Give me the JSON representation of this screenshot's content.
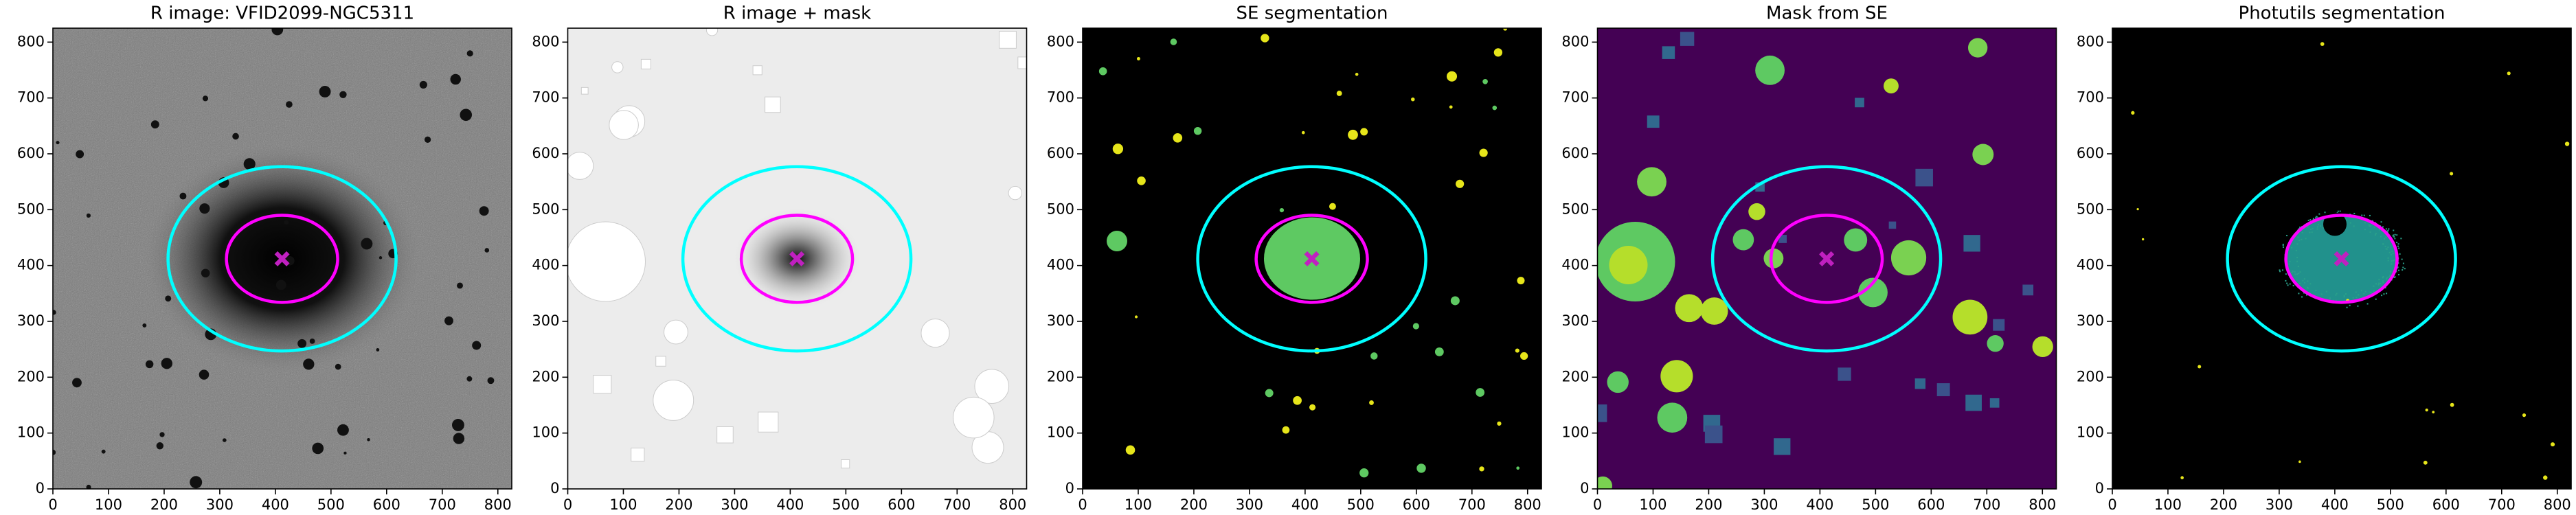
{
  "chart_data": [
    {
      "type": "image",
      "title": "R image: VFID2099-NGC5311",
      "background": "#7a7a7a",
      "xlim": [
        0,
        825
      ],
      "ylim": [
        0,
        825
      ],
      "xticks": [
        0,
        100,
        200,
        300,
        400,
        500,
        600,
        700,
        800
      ],
      "yticks": [
        0,
        100,
        200,
        300,
        400,
        500,
        600,
        700,
        800
      ],
      "ellipses": [
        {
          "cx": 412,
          "cy": 412,
          "rx": 205,
          "ry": 165,
          "color": "#00ffff"
        },
        {
          "cx": 412,
          "cy": 412,
          "rx": 100,
          "ry": 78,
          "color": "#ff00ff"
        }
      ],
      "marker": {
        "x": 412,
        "y": 412,
        "color": "#c020c0"
      }
    },
    {
      "type": "image",
      "title": "R image + mask",
      "background": "#ececec",
      "xlim": [
        0,
        825
      ],
      "ylim": [
        0,
        825
      ],
      "xticks": [
        0,
        100,
        200,
        300,
        400,
        500,
        600,
        700,
        800
      ],
      "yticks": [
        0,
        100,
        200,
        300,
        400,
        500,
        600,
        700,
        800
      ],
      "ellipses": [
        {
          "cx": 412,
          "cy": 412,
          "rx": 205,
          "ry": 165,
          "color": "#00ffff"
        },
        {
          "cx": 412,
          "cy": 412,
          "rx": 100,
          "ry": 78,
          "color": "#ff00ff"
        }
      ],
      "marker": {
        "x": 412,
        "y": 412,
        "color": "#c020c0"
      }
    },
    {
      "type": "image",
      "title": "SE segmentation",
      "background": "#000000",
      "xlim": [
        0,
        825
      ],
      "ylim": [
        0,
        825
      ],
      "xticks": [
        0,
        100,
        200,
        300,
        400,
        500,
        600,
        700,
        800
      ],
      "yticks": [
        0,
        100,
        200,
        300,
        400,
        500,
        600,
        700,
        800
      ],
      "ellipses": [
        {
          "cx": 412,
          "cy": 412,
          "rx": 205,
          "ry": 165,
          "color": "#00ffff"
        },
        {
          "cx": 412,
          "cy": 412,
          "rx": 100,
          "ry": 78,
          "color": "#ff00ff"
        }
      ],
      "marker": {
        "x": 412,
        "y": 412,
        "color": "#c020c0"
      }
    },
    {
      "type": "image",
      "title": "Mask from SE",
      "background": "#440154",
      "xlim": [
        0,
        825
      ],
      "ylim": [
        0,
        825
      ],
      "xticks": [
        0,
        100,
        200,
        300,
        400,
        500,
        600,
        700,
        800
      ],
      "yticks": [
        0,
        100,
        200,
        300,
        400,
        500,
        600,
        700,
        800
      ],
      "ellipses": [
        {
          "cx": 412,
          "cy": 412,
          "rx": 205,
          "ry": 165,
          "color": "#00ffff"
        },
        {
          "cx": 412,
          "cy": 412,
          "rx": 100,
          "ry": 78,
          "color": "#ff00ff"
        }
      ],
      "marker": {
        "x": 412,
        "y": 412,
        "color": "#c020c0"
      }
    },
    {
      "type": "image",
      "title": "Photutils segmentation",
      "background": "#000000",
      "xlim": [
        0,
        825
      ],
      "ylim": [
        0,
        825
      ],
      "xticks": [
        0,
        100,
        200,
        300,
        400,
        500,
        600,
        700,
        800
      ],
      "yticks": [
        0,
        100,
        200,
        300,
        400,
        500,
        600,
        700,
        800
      ],
      "ellipses": [
        {
          "cx": 412,
          "cy": 412,
          "rx": 205,
          "ry": 165,
          "color": "#00ffff"
        },
        {
          "cx": 412,
          "cy": 412,
          "rx": 100,
          "ry": 78,
          "color": "#ff00ff"
        }
      ],
      "marker": {
        "x": 412,
        "y": 412,
        "color": "#c020c0"
      }
    }
  ]
}
